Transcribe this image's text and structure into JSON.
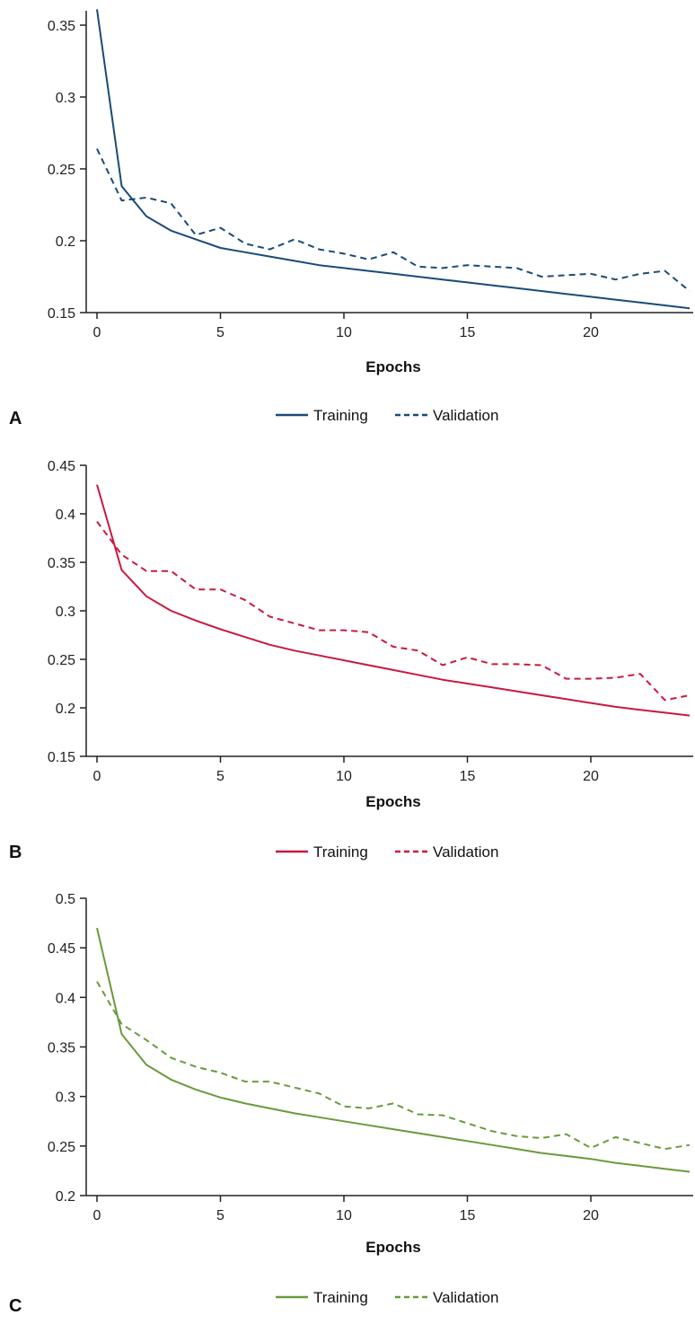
{
  "chart_data": [
    {
      "panel": "A",
      "type": "line",
      "xlabel": "Epochs",
      "ylabel": "",
      "xlim": [
        -0.5,
        24.5
      ],
      "ylim": [
        0.15,
        0.36
      ],
      "x_ticks": [
        "0",
        "5",
        "10",
        "15",
        "20"
      ],
      "y_ticks": [
        "0.15",
        "0.2",
        "0.25",
        "0.3",
        "0.35"
      ],
      "legend_position": "bottom-center",
      "color": "#1a4a7a",
      "x": [
        0,
        1,
        2,
        3,
        4,
        5,
        6,
        7,
        8,
        9,
        10,
        11,
        12,
        13,
        14,
        15,
        16,
        17,
        18,
        19,
        20,
        21,
        22,
        23,
        24
      ],
      "series": [
        {
          "name": "Training",
          "style": "solid",
          "values": [
            0.361,
            0.238,
            0.217,
            0.207,
            0.201,
            0.195,
            0.192,
            0.189,
            0.186,
            0.183,
            0.181,
            0.179,
            0.177,
            0.175,
            0.173,
            0.171,
            0.169,
            0.167,
            0.165,
            0.163,
            0.161,
            0.159,
            0.157,
            0.155,
            0.153
          ]
        },
        {
          "name": "Validation",
          "style": "dashed",
          "values": [
            0.264,
            0.228,
            0.23,
            0.226,
            0.204,
            0.209,
            0.198,
            0.194,
            0.201,
            0.194,
            0.191,
            0.187,
            0.192,
            0.182,
            0.181,
            0.183,
            0.182,
            0.181,
            0.175,
            0.176,
            0.177,
            0.173,
            0.177,
            0.179,
            0.165
          ]
        }
      ]
    },
    {
      "panel": "B",
      "type": "line",
      "xlabel": "Epochs",
      "ylabel": "",
      "xlim": [
        -0.5,
        24.5
      ],
      "ylim": [
        0.15,
        0.45
      ],
      "x_ticks": [
        "0",
        "5",
        "10",
        "15",
        "20"
      ],
      "y_ticks": [
        "0.15",
        "0.2",
        "0.25",
        "0.3",
        "0.35",
        "0.4",
        "0.45"
      ],
      "legend_position": "bottom-center",
      "color": "#c9193f",
      "x": [
        0,
        1,
        2,
        3,
        4,
        5,
        6,
        7,
        8,
        9,
        10,
        11,
        12,
        13,
        14,
        15,
        16,
        17,
        18,
        19,
        20,
        21,
        22,
        23,
        24
      ],
      "series": [
        {
          "name": "Training",
          "style": "solid",
          "values": [
            0.43,
            0.342,
            0.315,
            0.3,
            0.29,
            0.281,
            0.273,
            0.265,
            0.259,
            0.254,
            0.249,
            0.244,
            0.239,
            0.234,
            0.229,
            0.225,
            0.221,
            0.217,
            0.213,
            0.209,
            0.205,
            0.201,
            0.198,
            0.195,
            0.192
          ]
        },
        {
          "name": "Validation",
          "style": "dashed",
          "values": [
            0.392,
            0.358,
            0.341,
            0.341,
            0.322,
            0.322,
            0.311,
            0.294,
            0.287,
            0.28,
            0.28,
            0.278,
            0.263,
            0.259,
            0.244,
            0.252,
            0.245,
            0.245,
            0.244,
            0.23,
            0.23,
            0.231,
            0.235,
            0.208,
            0.213
          ]
        }
      ]
    },
    {
      "panel": "C",
      "type": "line",
      "xlabel": "Epochs",
      "ylabel": "",
      "xlim": [
        -0.5,
        24.5
      ],
      "ylim": [
        0.2,
        0.5
      ],
      "x_ticks": [
        "0",
        "5",
        "10",
        "15",
        "20"
      ],
      "y_ticks": [
        "0.2",
        "0.25",
        "0.3",
        "0.35",
        "0.4",
        "0.45",
        "0.5"
      ],
      "legend_position": "bottom-center",
      "color": "#6a9a3c",
      "x": [
        0,
        1,
        2,
        3,
        4,
        5,
        6,
        7,
        8,
        9,
        10,
        11,
        12,
        13,
        14,
        15,
        16,
        17,
        18,
        19,
        20,
        21,
        22,
        23,
        24
      ],
      "series": [
        {
          "name": "Training",
          "style": "solid",
          "values": [
            0.47,
            0.363,
            0.332,
            0.317,
            0.307,
            0.299,
            0.293,
            0.288,
            0.283,
            0.279,
            0.275,
            0.271,
            0.267,
            0.263,
            0.259,
            0.255,
            0.251,
            0.247,
            0.243,
            0.24,
            0.237,
            0.233,
            0.23,
            0.227,
            0.224
          ]
        },
        {
          "name": "Validation",
          "style": "dashed",
          "values": [
            0.416,
            0.373,
            0.357,
            0.339,
            0.33,
            0.324,
            0.315,
            0.315,
            0.309,
            0.303,
            0.29,
            0.288,
            0.293,
            0.282,
            0.281,
            0.273,
            0.265,
            0.26,
            0.258,
            0.262,
            0.248,
            0.259,
            0.253,
            0.247,
            0.251
          ]
        }
      ]
    }
  ]
}
